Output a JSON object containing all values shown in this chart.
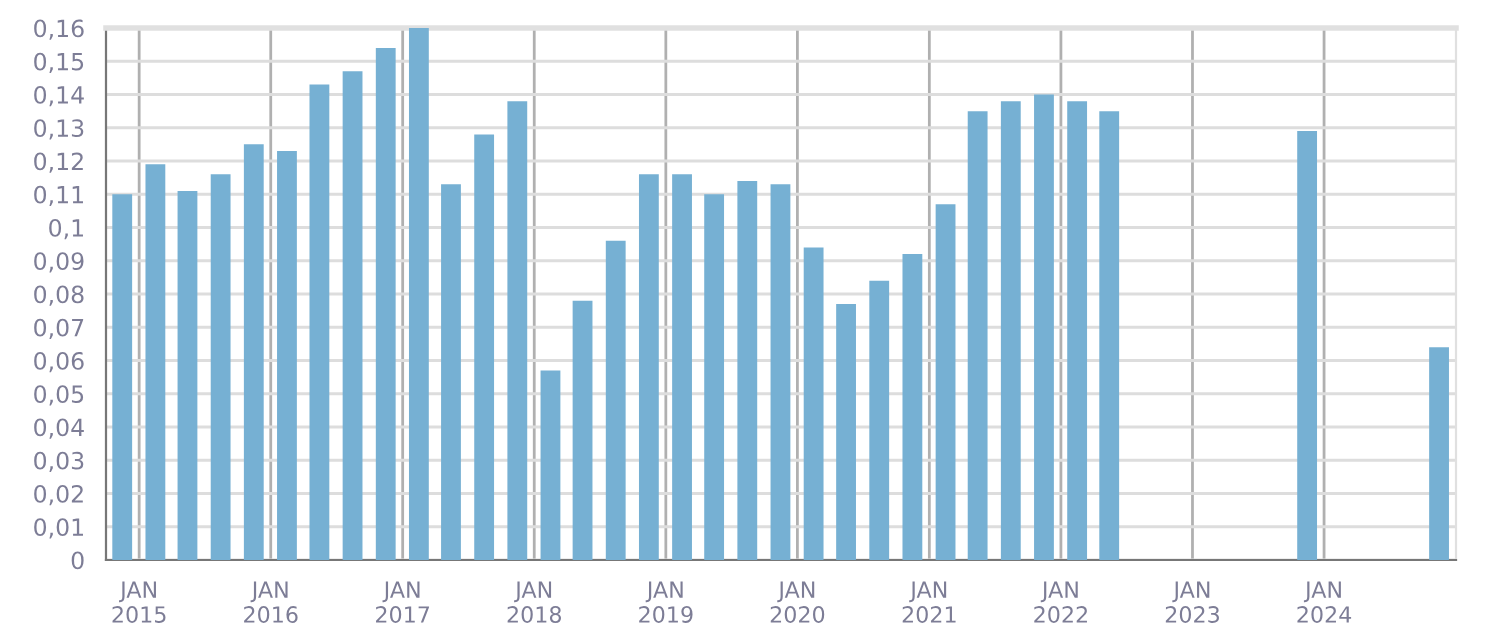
{
  "chart_data": {
    "type": "bar",
    "color": "#76b0d3",
    "x": [
      "2014-11-15",
      "2015-02-15",
      "2015-05-15",
      "2015-08-15",
      "2015-11-15",
      "2016-02-15",
      "2016-05-15",
      "2016-08-15",
      "2016-11-15",
      "2017-02-15",
      "2017-05-15",
      "2017-08-15",
      "2017-11-15",
      "2018-02-15",
      "2018-05-15",
      "2018-08-15",
      "2018-11-15",
      "2019-02-15",
      "2019-05-15",
      "2019-08-15",
      "2019-11-15",
      "2020-02-15",
      "2020-05-15",
      "2020-08-15",
      "2020-11-15",
      "2021-02-15",
      "2021-05-15",
      "2021-08-15",
      "2021-11-15",
      "2022-02-15",
      "2022-05-15",
      "2023-11-15",
      "2024-11-15"
    ],
    "values": [
      0.11,
      0.119,
      0.111,
      0.116,
      0.125,
      0.123,
      0.143,
      0.147,
      0.154,
      0.16,
      0.113,
      0.128,
      0.138,
      0.057,
      0.078,
      0.096,
      0.116,
      0.116,
      0.11,
      0.114,
      0.113,
      0.094,
      0.077,
      0.084,
      0.092,
      0.107,
      0.135,
      0.138,
      0.14,
      0.138,
      0.135,
      0.129,
      0.064
    ],
    "xlim": [
      "2014-10-01",
      "2025-01-01"
    ],
    "xticks": [
      {
        "value": "2015-01-01",
        "label": "JAN\n2015"
      },
      {
        "value": "2016-01-01",
        "label": "JAN\n2016"
      },
      {
        "value": "2017-01-01",
        "label": "JAN\n2017"
      },
      {
        "value": "2018-01-01",
        "label": "JAN\n2018"
      },
      {
        "value": "2019-01-01",
        "label": "JAN\n2019"
      },
      {
        "value": "2020-01-01",
        "label": "JAN\n2020"
      },
      {
        "value": "2021-01-01",
        "label": "JAN\n2021"
      },
      {
        "value": "2022-01-01",
        "label": "JAN\n2022"
      },
      {
        "value": "2023-01-01",
        "label": "JAN\n2023"
      },
      {
        "value": "2024-01-01",
        "label": "JAN\n2024"
      }
    ],
    "ylim": [
      0,
      0.16
    ],
    "yticks": [
      0,
      {
        "value": 0.01,
        "label": "0,01"
      },
      {
        "value": 0.02,
        "label": "0,02"
      },
      {
        "value": 0.03,
        "label": "0,03"
      },
      {
        "value": 0.04,
        "label": "0,04"
      },
      {
        "value": 0.05,
        "label": "0,05"
      },
      {
        "value": 0.06,
        "label": "0,06"
      },
      {
        "value": 0.07,
        "label": "0,07"
      },
      {
        "value": 0.08,
        "label": "0,08"
      },
      {
        "value": 0.09,
        "label": "0,09"
      },
      {
        "value": 0.1,
        "label": "0,1"
      },
      {
        "value": 0.11,
        "label": "0,11"
      },
      {
        "value": 0.12,
        "label": "0,12"
      },
      {
        "value": 0.13,
        "label": "0,13"
      },
      {
        "value": 0.14,
        "label": "0,14"
      },
      {
        "value": 0.15,
        "label": "0,15"
      },
      {
        "value": 0.16,
        "label": "0,16"
      }
    ],
    "grid": true
  }
}
